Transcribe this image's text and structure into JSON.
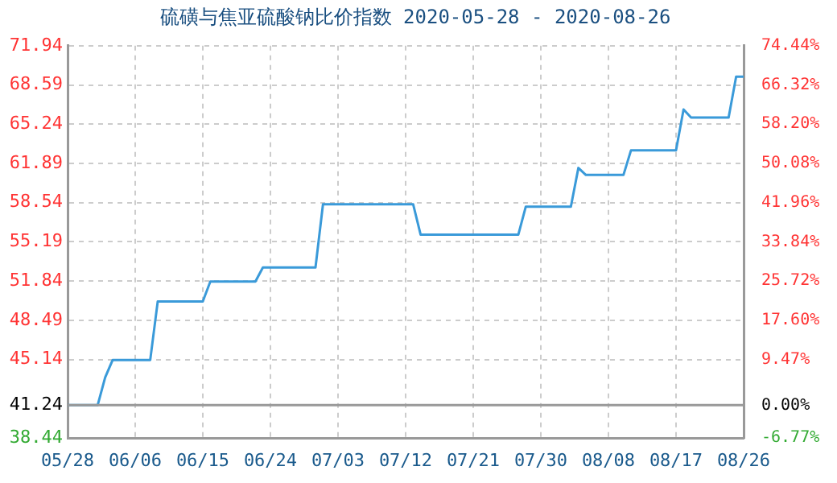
{
  "chart_data": {
    "type": "line",
    "title": "硫磺与焦亚硫酸钠比价指数 2020-05-28 - 2020-08-26",
    "x": [
      "2020-05-28",
      "2020-06-01",
      "2020-06-02",
      "2020-06-03",
      "2020-06-08",
      "2020-06-09",
      "2020-06-15",
      "2020-06-16",
      "2020-06-22",
      "2020-06-23",
      "2020-06-30",
      "2020-07-01",
      "2020-07-13",
      "2020-07-14",
      "2020-07-27",
      "2020-07-28",
      "2020-08-03",
      "2020-08-04",
      "2020-08-05",
      "2020-08-10",
      "2020-08-11",
      "2020-08-17",
      "2020-08-18",
      "2020-08-19",
      "2020-08-24",
      "2020-08-25",
      "2020-08-26"
    ],
    "series": [
      {
        "color": "#3a9ad9",
        "values": [
          41.24,
          41.24,
          43.6,
          45.1,
          45.1,
          50.1,
          50.1,
          51.8,
          51.8,
          53.0,
          53.0,
          58.4,
          58.4,
          55.8,
          55.8,
          58.2,
          58.2,
          61.5,
          60.9,
          60.9,
          63.0,
          63.0,
          66.5,
          65.8,
          65.8,
          69.3,
          69.3
        ]
      }
    ],
    "xlim": [
      "2020-05-28",
      "2020-08-26"
    ],
    "xticks": [
      {
        "value": "2020-05-28",
        "label": "05/28"
      },
      {
        "value": "2020-06-06",
        "label": "06/06"
      },
      {
        "value": "2020-06-15",
        "label": "06/15"
      },
      {
        "value": "2020-06-24",
        "label": "06/24"
      },
      {
        "value": "2020-07-03",
        "label": "07/03"
      },
      {
        "value": "2020-07-12",
        "label": "07/12"
      },
      {
        "value": "2020-07-21",
        "label": "07/21"
      },
      {
        "value": "2020-07-30",
        "label": "07/30"
      },
      {
        "value": "2020-08-08",
        "label": "08/08"
      },
      {
        "value": "2020-08-17",
        "label": "08/17"
      },
      {
        "value": "2020-08-26",
        "label": "08/26"
      }
    ],
    "ylim": [
      38.44,
      71.94
    ],
    "yticks": [
      38.44,
      41.24,
      45.14,
      48.49,
      51.84,
      55.19,
      58.54,
      61.89,
      65.24,
      68.59,
      71.94
    ],
    "y2lim": [
      -6.77,
      74.44
    ],
    "y2ticks": [
      {
        "value": -6.77,
        "label": "-6.77%"
      },
      {
        "value": 0,
        "label": "0.00%"
      },
      {
        "value": 9.47,
        "label": "9.47%"
      },
      {
        "value": 17.6,
        "label": "17.60%"
      },
      {
        "value": 25.72,
        "label": "25.72%"
      },
      {
        "value": 33.84,
        "label": "33.84%"
      },
      {
        "value": 41.96,
        "label": "41.96%"
      },
      {
        "value": 50.08,
        "label": "50.08%"
      },
      {
        "value": 58.2,
        "label": "58.20%"
      },
      {
        "value": 66.32,
        "label": "66.32%"
      },
      {
        "value": 74.44,
        "label": "74.44%"
      }
    ],
    "ref_lines": [
      {
        "axis": "y",
        "value": 41.24,
        "color": "#999999"
      }
    ],
    "grid": true,
    "legend": false,
    "marker": "none",
    "line_style": "solid"
  }
}
